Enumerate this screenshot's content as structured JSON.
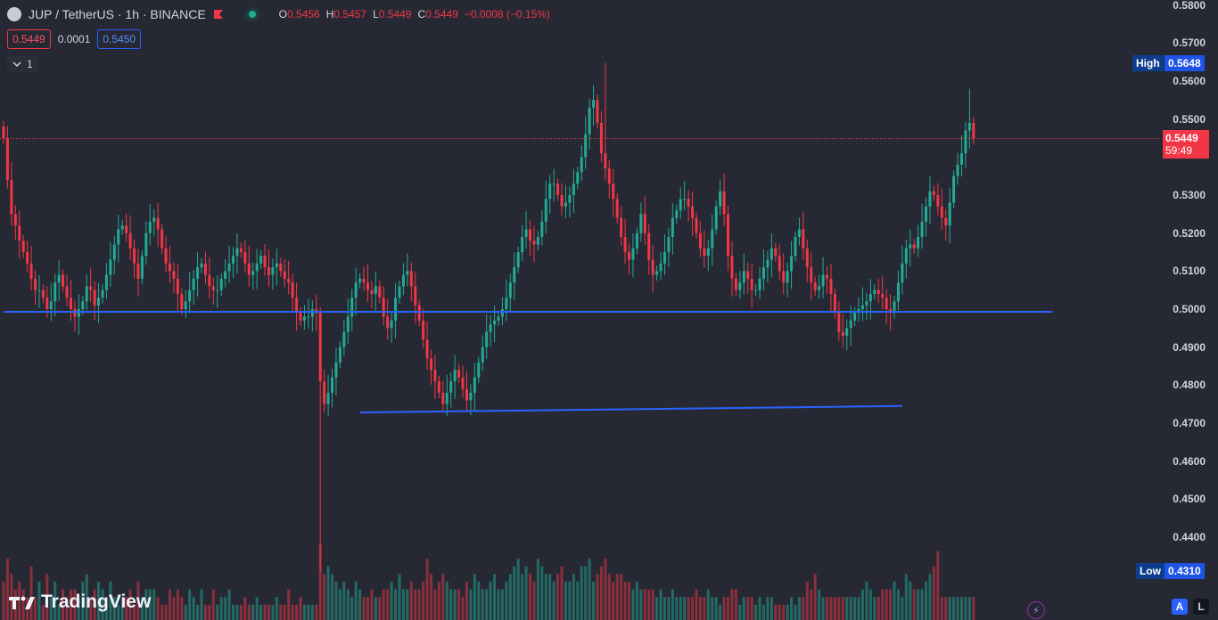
{
  "header": {
    "symbol": "JUP / TetherUS · 1h · BINANCE",
    "open_label": "O",
    "open": "0.5456",
    "high_label": "H",
    "high": "0.5457",
    "low_label": "L",
    "low": "0.5449",
    "close_label": "C",
    "close": "0.5449",
    "change": "−0.0008 (−0.15%)"
  },
  "trade": {
    "sell": "0.5449",
    "spread": "0.0001",
    "buy": "0.5450"
  },
  "indicators": {
    "toggle_icon": "chevron-down-icon",
    "count": "1"
  },
  "price_axis": {
    "labels": [
      "0.5800",
      "0.5700",
      "0.5600",
      "0.5500",
      "0.5300",
      "0.5200",
      "0.5100",
      "0.5000",
      "0.4900",
      "0.4800",
      "0.4700",
      "0.4600",
      "0.4500",
      "0.4400"
    ]
  },
  "markers": {
    "high_label": "High",
    "high_value": "0.5648",
    "low_label": "Low",
    "low_value": "0.4310",
    "last_price": "0.5449",
    "countdown": "59:49"
  },
  "footer": {
    "logo_text": "TradingView",
    "auto_btn": "A",
    "log_btn": "L"
  },
  "colors": {
    "up": "#22ab94",
    "down": "#f23645",
    "line": "#2962ff",
    "bg": "#262934"
  },
  "chart_data": {
    "type": "candlestick",
    "interval": "1h",
    "ylim": [
      0.431,
      0.58
    ],
    "closes": [
      0.545,
      0.534,
      0.525,
      0.522,
      0.518,
      0.515,
      0.512,
      0.508,
      0.505,
      0.505,
      0.503,
      0.5,
      0.502,
      0.507,
      0.509,
      0.506,
      0.503,
      0.5,
      0.498,
      0.5,
      0.502,
      0.506,
      0.505,
      0.501,
      0.503,
      0.505,
      0.509,
      0.513,
      0.517,
      0.521,
      0.522,
      0.52,
      0.516,
      0.512,
      0.508,
      0.514,
      0.52,
      0.523,
      0.524,
      0.521,
      0.516,
      0.512,
      0.51,
      0.508,
      0.504,
      0.5,
      0.502,
      0.505,
      0.508,
      0.511,
      0.512,
      0.509,
      0.506,
      0.505,
      0.505,
      0.508,
      0.51,
      0.512,
      0.514,
      0.516,
      0.515,
      0.512,
      0.509,
      0.51,
      0.512,
      0.514,
      0.511,
      0.509,
      0.511,
      0.512,
      0.51,
      0.508,
      0.507,
      0.503,
      0.499,
      0.497,
      0.498,
      0.498,
      0.5,
      0.499,
      0.481,
      0.475,
      0.478,
      0.482,
      0.486,
      0.49,
      0.494,
      0.498,
      0.503,
      0.507,
      0.508,
      0.507,
      0.505,
      0.504,
      0.506,
      0.503,
      0.498,
      0.495,
      0.497,
      0.503,
      0.506,
      0.509,
      0.51,
      0.506,
      0.501,
      0.497,
      0.492,
      0.487,
      0.484,
      0.481,
      0.478,
      0.475,
      0.478,
      0.481,
      0.484,
      0.482,
      0.479,
      0.476,
      0.478,
      0.482,
      0.486,
      0.49,
      0.494,
      0.496,
      0.497,
      0.498,
      0.5,
      0.503,
      0.507,
      0.511,
      0.515,
      0.519,
      0.521,
      0.518,
      0.517,
      0.519,
      0.523,
      0.529,
      0.533,
      0.533,
      0.53,
      0.527,
      0.528,
      0.53,
      0.533,
      0.536,
      0.54,
      0.546,
      0.553,
      0.555,
      0.549,
      0.541,
      0.537,
      0.533,
      0.529,
      0.524,
      0.519,
      0.515,
      0.513,
      0.516,
      0.52,
      0.525,
      0.52,
      0.513,
      0.509,
      0.51,
      0.512,
      0.515,
      0.519,
      0.524,
      0.526,
      0.529,
      0.529,
      0.527,
      0.524,
      0.52,
      0.516,
      0.514,
      0.516,
      0.521,
      0.527,
      0.531,
      0.525,
      0.514,
      0.508,
      0.505,
      0.507,
      0.51,
      0.508,
      0.505,
      0.505,
      0.508,
      0.511,
      0.513,
      0.516,
      0.514,
      0.51,
      0.507,
      0.51,
      0.514,
      0.519,
      0.521,
      0.516,
      0.511,
      0.507,
      0.505,
      0.506,
      0.509,
      0.508,
      0.504,
      0.499,
      0.494,
      0.493,
      0.495,
      0.497,
      0.499,
      0.5,
      0.501,
      0.502,
      0.504,
      0.505,
      0.504,
      0.503,
      0.5,
      0.499,
      0.502,
      0.507,
      0.512,
      0.516,
      0.517,
      0.516,
      0.519,
      0.523,
      0.527,
      0.531,
      0.53,
      0.527,
      0.524,
      0.522,
      0.528,
      0.535,
      0.538,
      0.541,
      0.547,
      0.549,
      0.5449
    ],
    "volume_ratio": [
      0.5,
      0.8,
      0.6,
      0.4,
      0.5,
      0.4,
      0.3,
      0.7,
      0.3,
      0.5,
      0.2,
      0.6,
      0.3,
      0.5,
      0.2,
      0.4,
      0.3,
      0.4,
      0.4,
      0.3,
      0.5,
      0.6,
      0.3,
      0.4,
      0.5,
      0.4,
      0.2,
      0.5,
      0.3,
      0.2,
      0.3,
      0.3,
      0.4,
      0.2,
      0.5,
      0.3,
      0.4,
      0.4,
      0.4,
      0.3,
      0.2,
      0.2,
      0.4,
      0.3,
      0.4,
      0.3,
      0.2,
      0.4,
      0.3,
      0.2,
      0.4,
      0.2,
      0.2,
      0.4,
      0.2,
      0.3,
      0.3,
      0.4,
      0.2,
      0.2,
      0.2,
      0.3,
      0.2,
      0.2,
      0.3,
      0.2,
      0.2,
      0.2,
      0.2,
      0.3,
      0.2,
      0.2,
      0.4,
      0.2,
      0.2,
      0.3,
      0.2,
      0.2,
      0.2,
      0.2,
      1.0,
      0.6,
      0.7,
      0.6,
      0.5,
      0.4,
      0.5,
      0.4,
      0.3,
      0.5,
      0.4,
      0.3,
      0.3,
      0.4,
      0.3,
      0.3,
      0.4,
      0.4,
      0.5,
      0.4,
      0.6,
      0.4,
      0.4,
      0.5,
      0.4,
      0.4,
      0.5,
      0.8,
      0.6,
      0.4,
      0.5,
      0.6,
      0.5,
      0.4,
      0.4,
      0.4,
      0.3,
      0.5,
      0.4,
      0.6,
      0.5,
      0.4,
      0.4,
      0.5,
      0.6,
      0.4,
      0.4,
      0.5,
      0.6,
      0.7,
      0.8,
      0.6,
      0.7,
      0.6,
      0.5,
      0.8,
      0.7,
      0.6,
      0.6,
      0.5,
      0.6,
      0.7,
      0.5,
      0.5,
      0.6,
      0.5,
      0.7,
      0.7,
      0.8,
      0.5,
      0.6,
      0.7,
      0.8,
      0.6,
      0.5,
      0.6,
      0.6,
      0.5,
      0.5,
      0.4,
      0.5,
      0.4,
      0.4,
      0.4,
      0.4,
      0.3,
      0.4,
      0.3,
      0.3,
      0.4,
      0.3,
      0.3,
      0.3,
      0.3,
      0.3,
      0.4,
      0.3,
      0.3,
      0.4,
      0.3,
      0.3,
      0.2,
      0.3,
      0.3,
      0.4,
      0.4,
      0.2,
      0.3,
      0.3,
      0.3,
      0.2,
      0.3,
      0.2,
      0.3,
      0.3,
      0.2,
      0.2,
      0.2,
      0.2,
      0.3,
      0.2,
      0.3,
      0.3,
      0.5,
      0.4,
      0.6,
      0.4,
      0.3,
      0.3,
      0.3,
      0.3,
      0.3,
      0.3,
      0.3,
      0.3,
      0.3,
      0.3,
      0.4,
      0.5,
      0.4,
      0.3,
      0.3,
      0.4,
      0.4,
      0.4,
      0.5,
      0.4,
      0.3,
      0.6,
      0.5,
      0.4,
      0.4,
      0.4,
      0.5,
      0.6,
      0.7,
      0.9
    ],
    "trendlines": [
      {
        "p1": [
          0,
          0.4993
        ],
        "p2": [
          265,
          0.4993
        ]
      },
      {
        "p1": [
          90,
          0.4728
        ],
        "p2": [
          227,
          0.4745
        ]
      }
    ],
    "high": 0.5648,
    "low": 0.431,
    "last": 0.5449
  }
}
